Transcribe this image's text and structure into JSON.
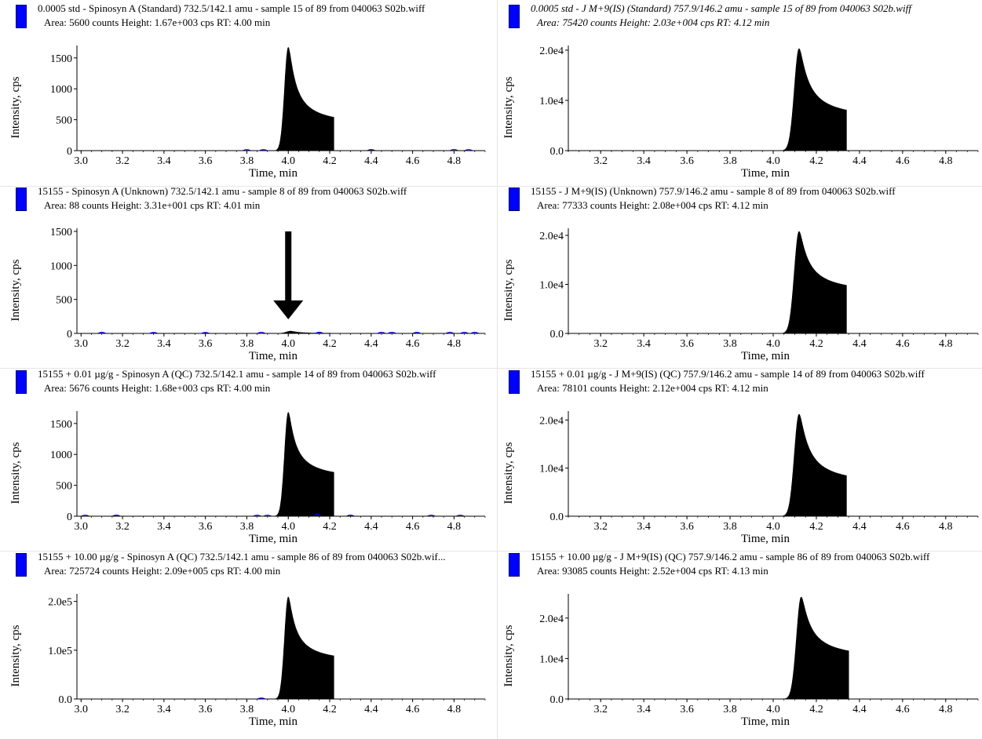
{
  "chart_data": [
    {
      "type": "area",
      "title": "0.0005 std - Spinosyn A (Standard) 732.5/142.1 amu - sample 15 of 89 from 040063 S02b.wiff",
      "stats": "Area: 5600 counts  Height: 1.67e+003 cps  RT: 4.00 min",
      "xlabel": "Time, min",
      "ylabel": "Intensity, cps",
      "xlim": [
        2.98,
        4.95
      ],
      "ylim": [
        0,
        1650
      ],
      "xticks": [
        3.0,
        3.2,
        3.4,
        3.6,
        3.8,
        4.0,
        4.2,
        4.4,
        4.6,
        4.8
      ],
      "yticks": [
        0,
        500,
        1000,
        1500
      ],
      "ytick_labels": [
        "0",
        "500",
        "1000",
        "1500"
      ],
      "peak": {
        "rt": 4.0,
        "height": 1670,
        "sigma": 0.018,
        "tail": 0.03
      },
      "noise": [
        [
          3.8,
          8
        ],
        [
          3.88,
          6
        ],
        [
          4.4,
          10
        ],
        [
          4.8,
          12
        ],
        [
          4.87,
          8
        ]
      ],
      "italic": false
    },
    {
      "type": "area",
      "title": "0.0005 std - J M+9(IS) (Standard) 757.9/146.2 amu - sample 15 of 89 from 040063 S02b.wiff",
      "stats": "Area: 75420 counts  Height: 2.03e+004 cps  RT: 4.12 min",
      "xlabel": "Time, min",
      "ylabel": "Intensity, cps",
      "xlim": [
        3.05,
        4.95
      ],
      "ylim": [
        0,
        20300
      ],
      "xticks": [
        3.2,
        3.4,
        3.6,
        3.8,
        4.0,
        4.2,
        4.4,
        4.6,
        4.8
      ],
      "yticks": [
        0,
        10000,
        20000
      ],
      "ytick_labels": [
        "0.0",
        "1.0e4",
        "2.0e4"
      ],
      "peak": {
        "rt": 4.12,
        "height": 20300,
        "sigma": 0.022,
        "tail": 0.04
      },
      "noise": [],
      "italic": true
    },
    {
      "type": "area",
      "title": "15155 - Spinosyn A (Unknown) 732.5/142.1 amu - sample 8 of 89 from 040063 S02b.wiff",
      "stats": "Area: 88 counts  Height: 3.31e+001 cps  RT: 4.01 min",
      "xlabel": "Time, min",
      "ylabel": "Intensity, cps",
      "xlim": [
        2.98,
        4.95
      ],
      "ylim": [
        0,
        1500
      ],
      "xticks": [
        3.0,
        3.2,
        3.4,
        3.6,
        3.8,
        4.0,
        4.2,
        4.4,
        4.6,
        4.8
      ],
      "yticks": [
        0,
        500,
        1000,
        1500
      ],
      "ytick_labels": [
        "0",
        "500",
        "1000",
        "1500"
      ],
      "peak": {
        "rt": 4.01,
        "height": 33.1,
        "sigma": 0.02,
        "tail": 0.02
      },
      "noise": [
        [
          3.1,
          8
        ],
        [
          3.35,
          6
        ],
        [
          3.6,
          6
        ],
        [
          3.87,
          10
        ],
        [
          4.15,
          12
        ],
        [
          4.45,
          10
        ],
        [
          4.5,
          10
        ],
        [
          4.62,
          8
        ],
        [
          4.78,
          10
        ],
        [
          4.85,
          10
        ],
        [
          4.9,
          10
        ]
      ],
      "arrow": {
        "x": 4.0,
        "y_top": 1500,
        "y_tip": 210
      },
      "italic": false
    },
    {
      "type": "area",
      "title": "15155 - J M+9(IS) (Unknown) 757.9/146.2 amu - sample 8 of 89 from 040063 S02b.wiff",
      "stats": "Area: 77333 counts  Height: 2.08e+004 cps  RT: 4.12 min",
      "xlabel": "Time, min",
      "ylabel": "Intensity, cps",
      "xlim": [
        3.05,
        4.95
      ],
      "ylim": [
        0,
        20800
      ],
      "xticks": [
        3.2,
        3.4,
        3.6,
        3.8,
        4.0,
        4.2,
        4.4,
        4.6,
        4.8
      ],
      "yticks": [
        0,
        10000,
        20000
      ],
      "ytick_labels": [
        "0.0",
        "1.0e4",
        "2.0e4"
      ],
      "peak": {
        "rt": 4.12,
        "height": 20800,
        "sigma": 0.022,
        "tail": 0.045
      },
      "noise": [],
      "italic": false
    },
    {
      "type": "area",
      "title": "15155 + 0.01 µg/g - Spinosyn A (QC) 732.5/142.1 amu - sample 14 of 89 from 040063 S02b.wiff",
      "stats": "Area: 5676 counts  Height: 1.68e+003 cps  RT: 4.00 min",
      "xlabel": "Time, min",
      "ylabel": "Intensity, cps",
      "xlim": [
        2.98,
        4.95
      ],
      "ylim": [
        0,
        1650
      ],
      "xticks": [
        3.0,
        3.2,
        3.4,
        3.6,
        3.8,
        4.0,
        4.2,
        4.4,
        4.6,
        4.8
      ],
      "yticks": [
        0,
        500,
        1000,
        1500
      ],
      "ytick_labels": [
        "0",
        "500",
        "1000",
        "1500"
      ],
      "peak": {
        "rt": 4.0,
        "height": 1680,
        "sigma": 0.018,
        "tail": 0.035
      },
      "noise": [
        [
          3.02,
          8
        ],
        [
          3.17,
          10
        ],
        [
          3.85,
          8
        ],
        [
          3.9,
          8
        ],
        [
          4.14,
          40
        ],
        [
          4.3,
          10
        ],
        [
          4.69,
          8
        ],
        [
          4.83,
          8
        ]
      ],
      "italic": false
    },
    {
      "type": "area",
      "title": "15155 + 0.01 µg/g - J M+9(IS) (QC) 757.9/146.2 amu - sample 14 of 89 from 040063 S02b.wiff",
      "stats": "Area: 78101 counts  Height: 2.12e+004 cps  RT: 4.12 min",
      "xlabel": "Time, min",
      "ylabel": "Intensity, cps",
      "xlim": [
        3.05,
        4.95
      ],
      "ylim": [
        0,
        21200
      ],
      "xticks": [
        3.2,
        3.4,
        3.6,
        3.8,
        4.0,
        4.2,
        4.4,
        4.6,
        4.8
      ],
      "yticks": [
        0,
        10000,
        20000
      ],
      "ytick_labels": [
        "0.0",
        "1.0e4",
        "2.0e4"
      ],
      "peak": {
        "rt": 4.12,
        "height": 21200,
        "sigma": 0.022,
        "tail": 0.04
      },
      "noise": [],
      "italic": false
    },
    {
      "type": "area",
      "title": "15155 + 10.00 µg/g - Spinosyn A (QC) 732.5/142.1 amu - sample 86 of 89 from 040063 S02b.wif...",
      "stats": "Area: 725724 counts  Height: 2.09e+005 cps  RT: 4.00 min",
      "xlabel": "Time, min",
      "ylabel": "Intensity, cps",
      "xlim": [
        2.98,
        4.95
      ],
      "ylim": [
        0,
        209000
      ],
      "xticks": [
        3.0,
        3.2,
        3.4,
        3.6,
        3.8,
        4.0,
        4.2,
        4.4,
        4.6,
        4.8
      ],
      "yticks": [
        0,
        100000,
        200000
      ],
      "ytick_labels": [
        "0.0",
        "1.0e5",
        "2.0e5"
      ],
      "peak": {
        "rt": 4.0,
        "height": 209000,
        "sigma": 0.018,
        "tail": 0.035
      },
      "noise": [
        [
          3.87,
          800
        ]
      ],
      "italic": false
    },
    {
      "type": "area",
      "title": "15155 + 10.00 µg/g - J M+9(IS) (QC) 757.9/146.2 amu - sample 86 of 89 from 040063 S02b.wiff",
      "stats": "Area: 93085 counts  Height: 2.52e+004 cps  RT: 4.13 min",
      "xlabel": "Time, min",
      "ylabel": "Intensity, cps",
      "xlim": [
        3.05,
        4.95
      ],
      "ylim": [
        0,
        25200
      ],
      "xticks": [
        3.2,
        3.4,
        3.6,
        3.8,
        4.0,
        4.2,
        4.4,
        4.6,
        4.8
      ],
      "yticks": [
        0,
        10000,
        20000
      ],
      "ytick_labels": [
        "0.0",
        "1.0e4",
        "2.0e4"
      ],
      "peak": {
        "rt": 4.13,
        "height": 25200,
        "sigma": 0.022,
        "tail": 0.045
      },
      "noise": [],
      "italic": false
    }
  ],
  "colors": {
    "swatch": "#0000ff",
    "peak_fill": "#000000",
    "noise": "#0000ff",
    "axis": "#000000"
  }
}
